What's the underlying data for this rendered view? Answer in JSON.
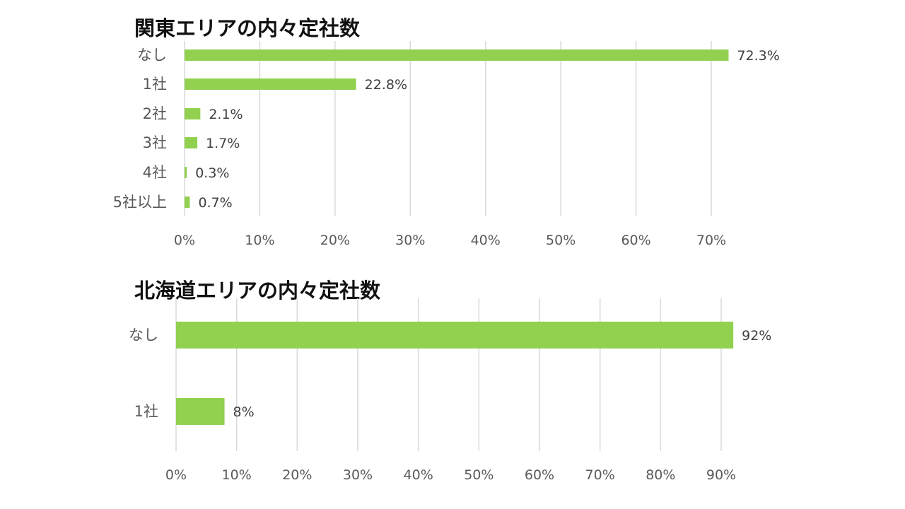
{
  "chart_data": [
    {
      "type": "bar",
      "orientation": "horizontal",
      "title": "関東エリアの内々定社数",
      "categories": [
        "なし",
        "1社",
        "2社",
        "3社",
        "4社",
        "5社以上"
      ],
      "values": [
        72.3,
        22.8,
        2.1,
        1.7,
        0.3,
        0.7
      ],
      "value_labels": [
        "72.3%",
        "22.8%",
        "2.1%",
        "1.7%",
        "0.3%",
        "0.7%"
      ],
      "xlim": [
        0,
        70
      ],
      "xticks": [
        "0%",
        "10%",
        "20%",
        "30%",
        "40%",
        "50%",
        "60%",
        "70%"
      ],
      "grid": true,
      "legend": "none",
      "color": "#92d050"
    },
    {
      "type": "bar",
      "orientation": "horizontal",
      "title": "北海道エリアの内々定社数",
      "categories": [
        "なし",
        "1社"
      ],
      "values": [
        92,
        8
      ],
      "value_labels": [
        "92%",
        "8%"
      ],
      "xlim": [
        0,
        90
      ],
      "xticks": [
        "0%",
        "10%",
        "20%",
        "30%",
        "40%",
        "50%",
        "60%",
        "70%",
        "80%",
        "90%"
      ],
      "grid": true,
      "legend": "none",
      "color": "#92d050"
    }
  ]
}
